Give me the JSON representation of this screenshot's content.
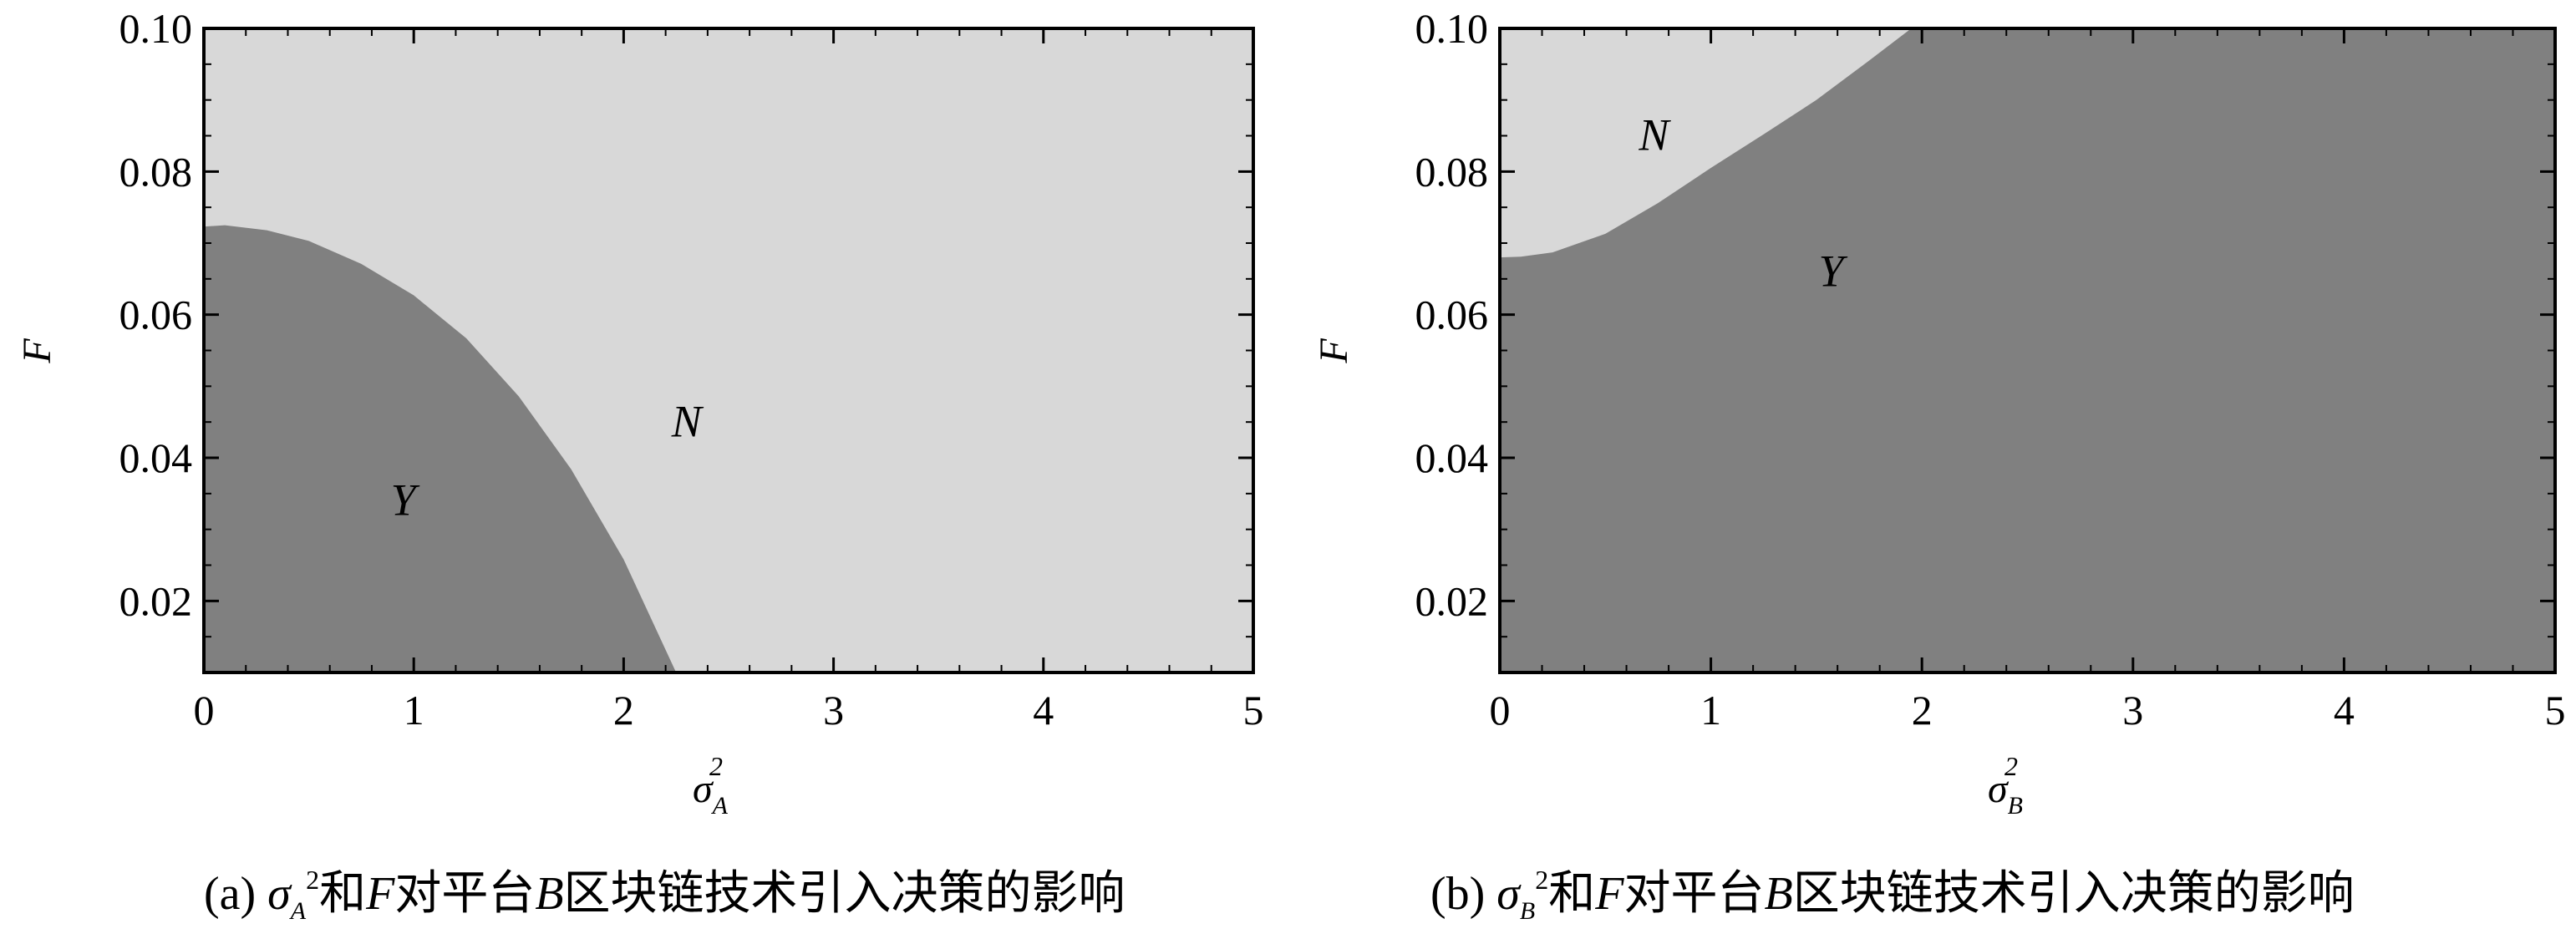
{
  "colors": {
    "region_N": "#d8d8d8",
    "region_Y": "#808080",
    "axis": "#000000"
  },
  "chart_data": [
    {
      "type": "region",
      "panel": "a",
      "ylabel": "F",
      "xlabel_symbol": "σ",
      "xlabel_sub": "A",
      "xlabel_sup": "2",
      "xlim": [
        0,
        5
      ],
      "ylim": [
        0.01,
        0.1
      ],
      "xticks": [
        "0",
        "1",
        "2",
        "3",
        "4",
        "5"
      ],
      "yticks": [
        "0.02",
        "0.04",
        "0.06",
        "0.08",
        "0.10"
      ],
      "regions": [
        {
          "name": "N",
          "label_at": {
            "x": 2.3,
            "y": 0.043
          }
        },
        {
          "name": "Y",
          "label_at": {
            "x": 0.95,
            "y": 0.032
          }
        }
      ],
      "boundary": {
        "description": "Y below curve, N above",
        "x": [
          0,
          0.1,
          0.3,
          0.5,
          0.75,
          1.0,
          1.25,
          1.5,
          1.75,
          2.0,
          2.25
        ],
        "y": [
          0.0723,
          0.0725,
          0.0718,
          0.0703,
          0.0671,
          0.0627,
          0.0567,
          0.0486,
          0.0384,
          0.0258,
          0.01
        ]
      },
      "caption": {
        "prefix": "(a) ",
        "symbol": "σ",
        "sub": "A",
        "sup": "2",
        "mid": "和",
        "var": "F",
        "platform_pre": "对平台",
        "platform": "B",
        "rest": "区块链技术引入决策的影响"
      }
    },
    {
      "type": "region",
      "panel": "b",
      "ylabel": "F",
      "xlabel_symbol": "σ",
      "xlabel_sub": "B",
      "xlabel_sup": "2",
      "xlim": [
        0,
        5
      ],
      "ylim": [
        0.01,
        0.1
      ],
      "xticks": [
        "0",
        "1",
        "2",
        "3",
        "4",
        "5"
      ],
      "yticks": [
        "0.02",
        "0.04",
        "0.06",
        "0.08",
        "0.10"
      ],
      "regions": [
        {
          "name": "N",
          "label_at": {
            "x": 0.73,
            "y": 0.083
          }
        },
        {
          "name": "Y",
          "label_at": {
            "x": 1.57,
            "y": 0.064
          }
        }
      ],
      "boundary": {
        "description": "N above curve, Y below",
        "x": [
          0,
          0.1,
          0.25,
          0.5,
          0.75,
          1.0,
          1.25,
          1.5,
          1.75,
          1.95
        ],
        "y": [
          0.068,
          0.0681,
          0.0687,
          0.0713,
          0.0756,
          0.0805,
          0.0852,
          0.09,
          0.0955,
          0.1
        ]
      },
      "caption": {
        "prefix": "(b) ",
        "symbol": "σ",
        "sub": "B",
        "sup": "2",
        "mid": "和",
        "var": "F",
        "platform_pre": "对平台",
        "platform": "B",
        "rest": "区块链技术引入决策的影响"
      }
    }
  ]
}
